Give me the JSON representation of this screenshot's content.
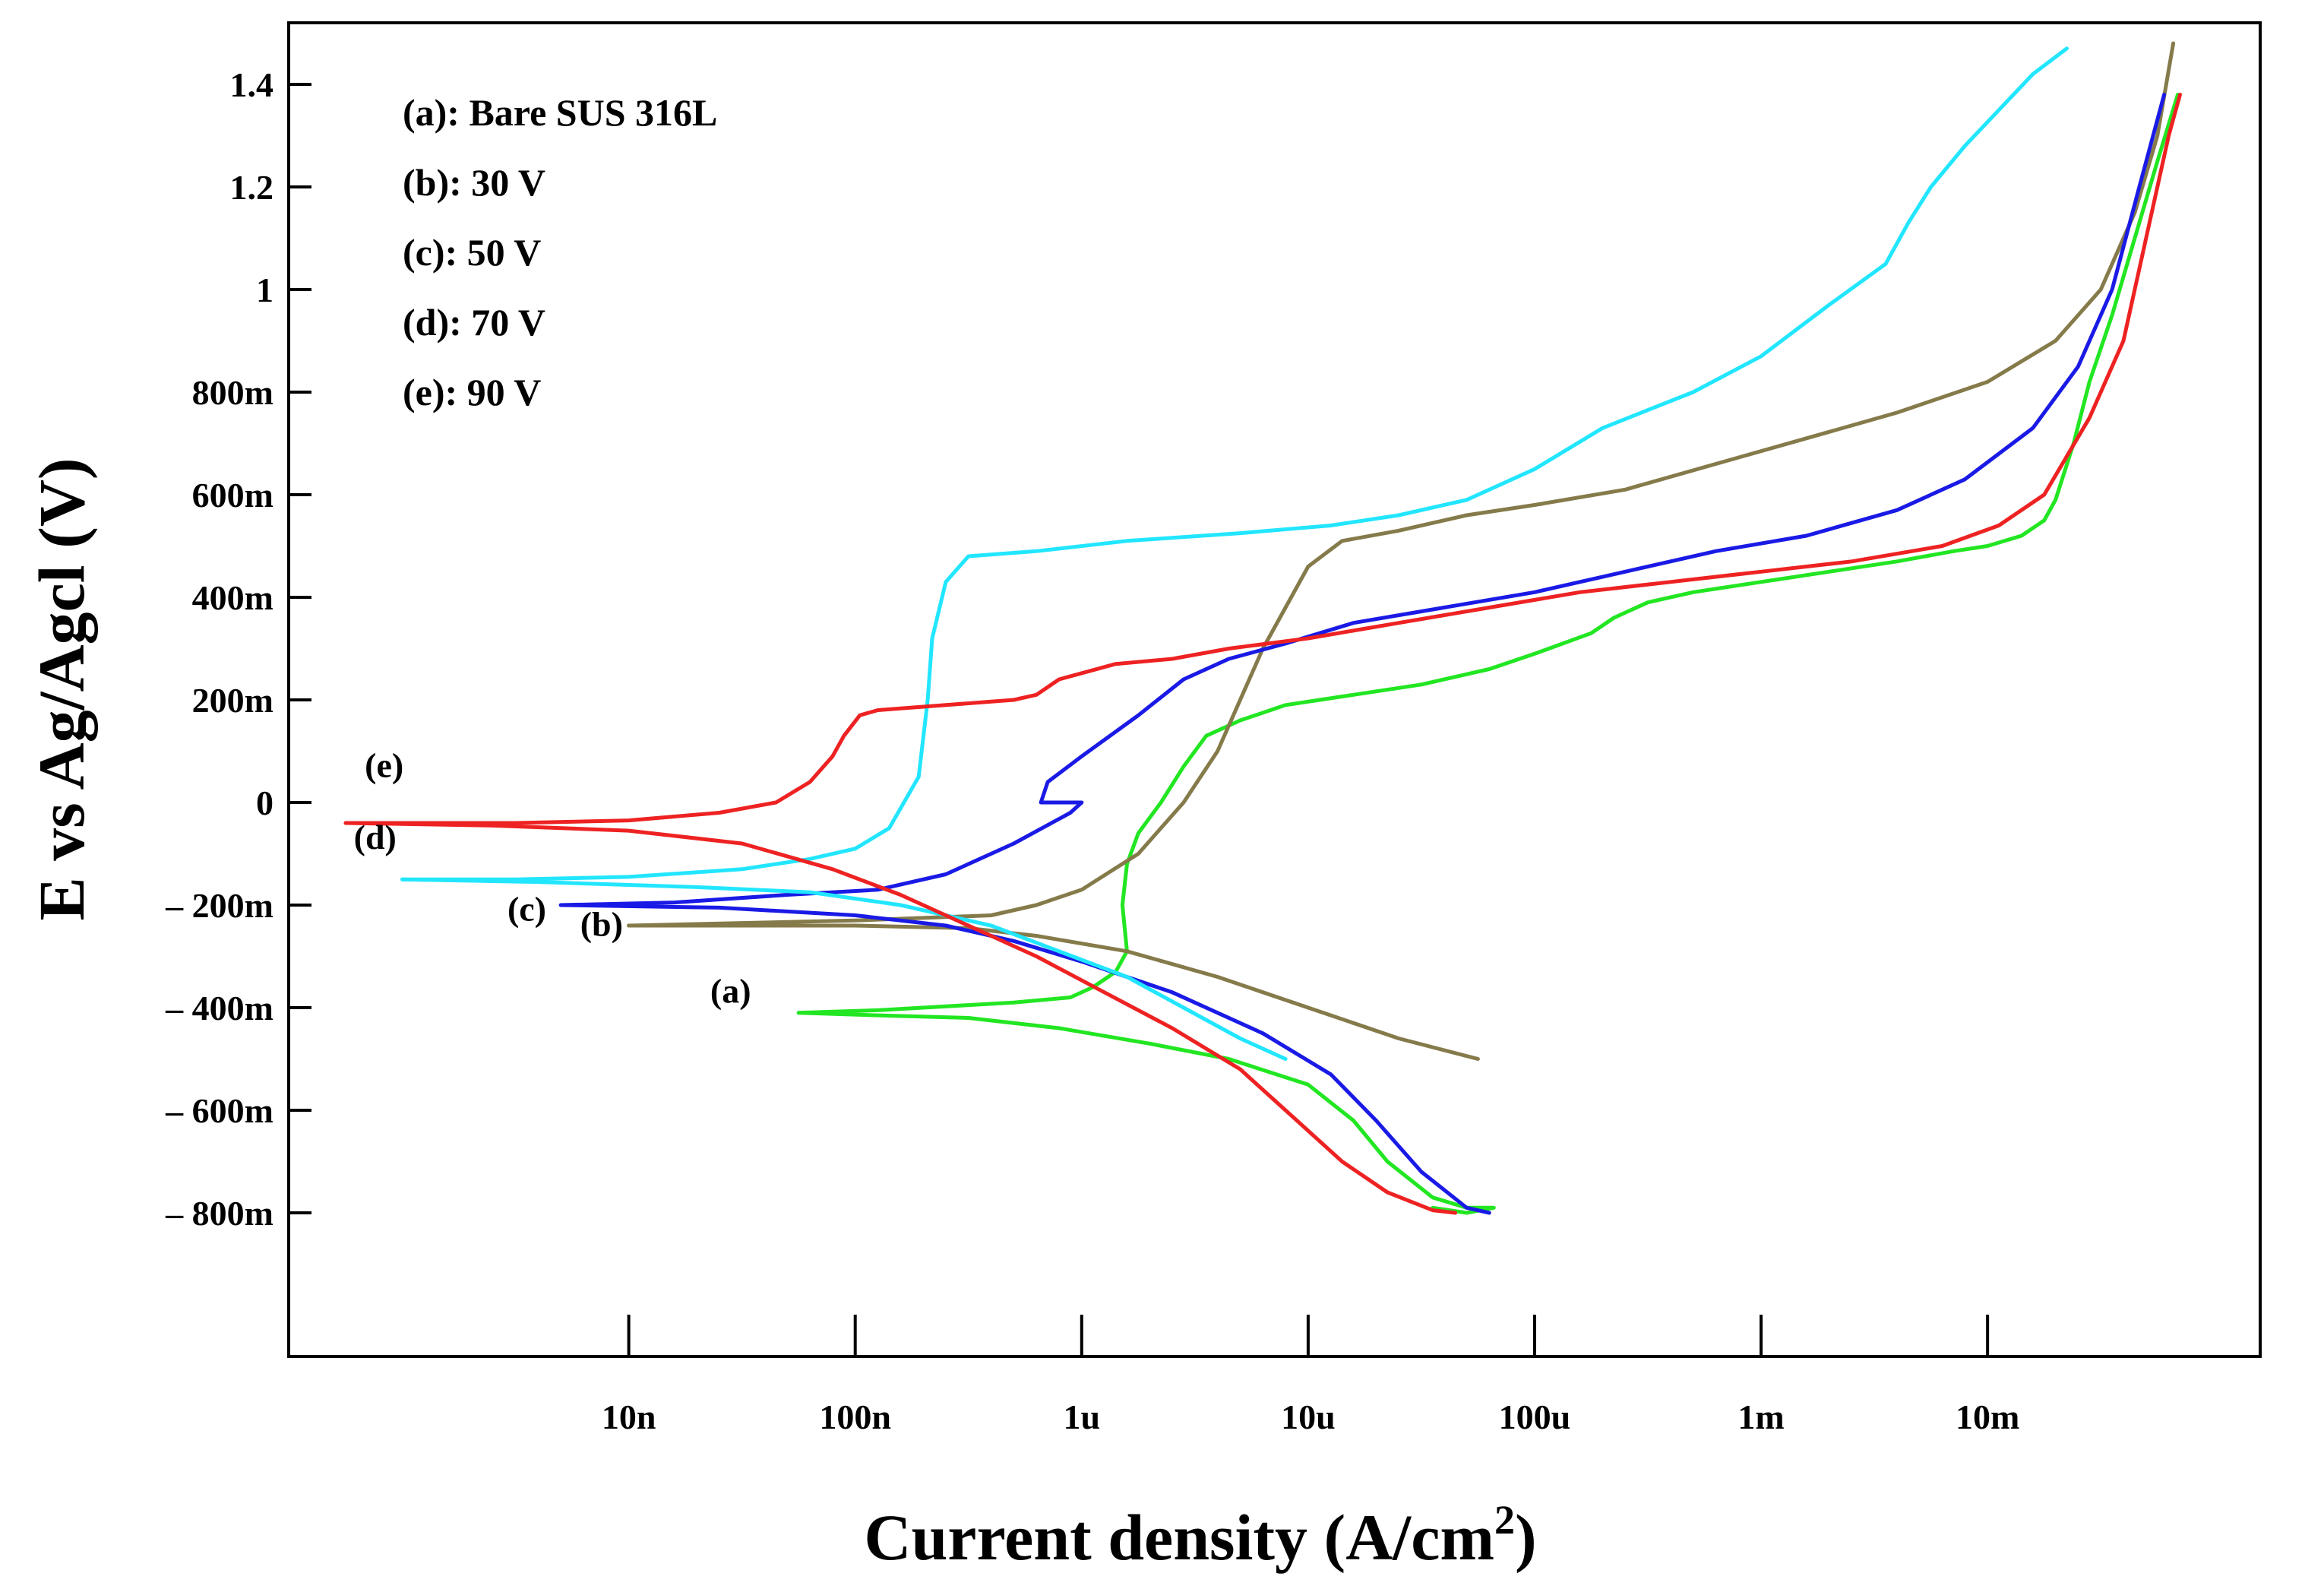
{
  "chart_data": {
    "type": "line",
    "title": "",
    "xlabel": "Current density (A/cm",
    "xlabel_superscript": "2",
    "xlabel_close": ")",
    "ylabel": "E vs Ag/Agcl (V)",
    "x_scale": "log",
    "xlim_log10": [
      -9.25,
      -0.88
    ],
    "ylim": [
      -1.08,
      1.52
    ],
    "x_ticks": [
      {
        "log10": -8,
        "label": "10n"
      },
      {
        "log10": -7,
        "label": "100n"
      },
      {
        "log10": -6,
        "label": "1u"
      },
      {
        "log10": -5,
        "label": "10u"
      },
      {
        "log10": -4,
        "label": "100u"
      },
      {
        "log10": -3,
        "label": "1m"
      },
      {
        "log10": -2,
        "label": "10m"
      }
    ],
    "y_ticks": [
      {
        "value": 1.4,
        "label": "1.4"
      },
      {
        "value": 1.2,
        "label": "1.2"
      },
      {
        "value": 1.0,
        "label": "1"
      },
      {
        "value": 0.8,
        "label": "800m"
      },
      {
        "value": 0.6,
        "label": "600m"
      },
      {
        "value": 0.4,
        "label": "400m"
      },
      {
        "value": 0.2,
        "label": "200m"
      },
      {
        "value": 0.0,
        "label": "0"
      },
      {
        "value": -0.2,
        "label": "– 200m"
      },
      {
        "value": -0.4,
        "label": "– 400m"
      },
      {
        "value": -0.6,
        "label": "– 600m"
      },
      {
        "value": -0.8,
        "label": "– 800m"
      }
    ],
    "legend": {
      "placement": "top-left",
      "entries": [
        "(a): Bare SUS 316L",
        "(b): 30 V",
        "(c): 50 V",
        "(d): 70 V",
        "(e): 90 V"
      ]
    },
    "series": [
      {
        "name": "(a)",
        "color": "#22e622",
        "label_point": {
          "log10": -7.55,
          "E": -0.39
        },
        "points": [
          [
            -7.25,
            -0.41
          ],
          [
            -6.9,
            -0.405
          ],
          [
            -6.7,
            -0.4
          ],
          [
            -6.5,
            -0.395
          ],
          [
            -6.3,
            -0.39
          ],
          [
            -6.05,
            -0.38
          ],
          [
            -5.95,
            -0.36
          ],
          [
            -5.85,
            -0.33
          ],
          [
            -5.8,
            -0.29
          ],
          [
            -5.82,
            -0.2
          ],
          [
            -5.8,
            -0.12
          ],
          [
            -5.75,
            -0.06
          ],
          [
            -5.65,
            0.0
          ],
          [
            -5.55,
            0.07
          ],
          [
            -5.45,
            0.13
          ],
          [
            -5.3,
            0.16
          ],
          [
            -5.1,
            0.19
          ],
          [
            -4.8,
            0.21
          ],
          [
            -4.5,
            0.23
          ],
          [
            -4.2,
            0.26
          ],
          [
            -4.0,
            0.29
          ],
          [
            -3.75,
            0.33
          ],
          [
            -3.65,
            0.36
          ],
          [
            -3.5,
            0.39
          ],
          [
            -3.3,
            0.41
          ],
          [
            -3.0,
            0.43
          ],
          [
            -2.7,
            0.45
          ],
          [
            -2.4,
            0.47
          ],
          [
            -2.15,
            0.49
          ],
          [
            -2.0,
            0.5
          ],
          [
            -1.85,
            0.52
          ],
          [
            -1.75,
            0.55
          ],
          [
            -1.7,
            0.59
          ],
          [
            -1.62,
            0.7
          ],
          [
            -1.55,
            0.82
          ],
          [
            -1.45,
            0.95
          ],
          [
            -1.35,
            1.1
          ],
          [
            -1.25,
            1.25
          ],
          [
            -1.16,
            1.38
          ]
        ],
        "points_cathodic": [
          [
            -7.25,
            -0.41
          ],
          [
            -6.9,
            -0.415
          ],
          [
            -6.5,
            -0.42
          ],
          [
            -6.1,
            -0.44
          ],
          [
            -5.7,
            -0.47
          ],
          [
            -5.35,
            -0.5
          ],
          [
            -5.0,
            -0.55
          ],
          [
            -4.8,
            -0.62
          ],
          [
            -4.65,
            -0.7
          ],
          [
            -4.45,
            -0.77
          ],
          [
            -4.3,
            -0.79
          ],
          [
            -4.18,
            -0.79
          ],
          [
            -4.3,
            -0.8
          ],
          [
            -4.45,
            -0.79
          ]
        ]
      },
      {
        "name": "(b)",
        "color": "#857a4a",
        "label_point": {
          "log10": -8.12,
          "E": -0.26
        },
        "points": [
          [
            -8.0,
            -0.24
          ],
          [
            -7.5,
            -0.235
          ],
          [
            -7.0,
            -0.23
          ],
          [
            -6.7,
            -0.225
          ],
          [
            -6.4,
            -0.22
          ],
          [
            -6.2,
            -0.2
          ],
          [
            -6.0,
            -0.17
          ],
          [
            -5.75,
            -0.1
          ],
          [
            -5.55,
            0.0
          ],
          [
            -5.4,
            0.1
          ],
          [
            -5.3,
            0.2
          ],
          [
            -5.2,
            0.3
          ],
          [
            -5.1,
            0.38
          ],
          [
            -5.0,
            0.46
          ],
          [
            -4.85,
            0.51
          ],
          [
            -4.6,
            0.53
          ],
          [
            -4.3,
            0.56
          ],
          [
            -4.0,
            0.58
          ],
          [
            -3.6,
            0.61
          ],
          [
            -3.2,
            0.66
          ],
          [
            -2.8,
            0.71
          ],
          [
            -2.4,
            0.76
          ],
          [
            -2.0,
            0.82
          ],
          [
            -1.7,
            0.9
          ],
          [
            -1.5,
            1.0
          ],
          [
            -1.35,
            1.15
          ],
          [
            -1.25,
            1.3
          ],
          [
            -1.18,
            1.48
          ]
        ],
        "points_cathodic": [
          [
            -8.0,
            -0.24
          ],
          [
            -7.5,
            -0.24
          ],
          [
            -7.0,
            -0.24
          ],
          [
            -6.5,
            -0.245
          ],
          [
            -6.2,
            -0.26
          ],
          [
            -5.8,
            -0.29
          ],
          [
            -5.4,
            -0.34
          ],
          [
            -5.0,
            -0.4
          ],
          [
            -4.6,
            -0.46
          ],
          [
            -4.25,
            -0.5
          ]
        ]
      },
      {
        "name": "(c)",
        "color": "#1a1ae6",
        "label_point": {
          "log10": -8.45,
          "E": -0.23
        },
        "points": [
          [
            -8.3,
            -0.2
          ],
          [
            -7.8,
            -0.195
          ],
          [
            -7.3,
            -0.18
          ],
          [
            -6.9,
            -0.17
          ],
          [
            -6.6,
            -0.14
          ],
          [
            -6.3,
            -0.08
          ],
          [
            -6.05,
            -0.02
          ],
          [
            -6.0,
            0.0
          ],
          [
            -6.18,
            0.0
          ],
          [
            -6.15,
            0.04
          ],
          [
            -6.0,
            0.09
          ],
          [
            -5.75,
            0.17
          ],
          [
            -5.55,
            0.24
          ],
          [
            -5.35,
            0.28
          ],
          [
            -5.1,
            0.31
          ],
          [
            -4.8,
            0.35
          ],
          [
            -4.4,
            0.38
          ],
          [
            -4.0,
            0.41
          ],
          [
            -3.6,
            0.45
          ],
          [
            -3.2,
            0.49
          ],
          [
            -2.8,
            0.52
          ],
          [
            -2.4,
            0.57
          ],
          [
            -2.1,
            0.63
          ],
          [
            -1.8,
            0.73
          ],
          [
            -1.6,
            0.85
          ],
          [
            -1.45,
            1.0
          ],
          [
            -1.33,
            1.2
          ],
          [
            -1.22,
            1.38
          ]
        ],
        "points_cathodic": [
          [
            -8.3,
            -0.2
          ],
          [
            -7.6,
            -0.205
          ],
          [
            -7.0,
            -0.22
          ],
          [
            -6.6,
            -0.24
          ],
          [
            -6.3,
            -0.27
          ],
          [
            -6.0,
            -0.31
          ],
          [
            -5.6,
            -0.37
          ],
          [
            -5.2,
            -0.45
          ],
          [
            -4.9,
            -0.53
          ],
          [
            -4.7,
            -0.62
          ],
          [
            -4.5,
            -0.72
          ],
          [
            -4.3,
            -0.79
          ],
          [
            -4.2,
            -0.8
          ],
          [
            -4.3,
            -0.79
          ]
        ]
      },
      {
        "name": "(d)",
        "color": "#22e6ff",
        "label_point": {
          "log10": -9.12,
          "E": -0.09
        },
        "points": [
          [
            -9.0,
            -0.15
          ],
          [
            -8.5,
            -0.15
          ],
          [
            -8.0,
            -0.145
          ],
          [
            -7.5,
            -0.13
          ],
          [
            -7.2,
            -0.11
          ],
          [
            -7.0,
            -0.09
          ],
          [
            -6.85,
            -0.05
          ],
          [
            -6.72,
            0.05
          ],
          [
            -6.68,
            0.2
          ],
          [
            -6.66,
            0.32
          ],
          [
            -6.6,
            0.43
          ],
          [
            -6.5,
            0.48
          ],
          [
            -6.2,
            0.49
          ],
          [
            -5.8,
            0.51
          ],
          [
            -5.3,
            0.525
          ],
          [
            -4.9,
            0.54
          ],
          [
            -4.6,
            0.56
          ],
          [
            -4.3,
            0.59
          ],
          [
            -4.0,
            0.65
          ],
          [
            -3.7,
            0.73
          ],
          [
            -3.3,
            0.8
          ],
          [
            -3.0,
            0.87
          ],
          [
            -2.7,
            0.97
          ],
          [
            -2.45,
            1.05
          ],
          [
            -2.35,
            1.13
          ],
          [
            -2.25,
            1.2
          ],
          [
            -2.1,
            1.28
          ],
          [
            -1.95,
            1.35
          ],
          [
            -1.8,
            1.42
          ],
          [
            -1.65,
            1.47
          ]
        ],
        "points_cathodic": [
          [
            -9.0,
            -0.15
          ],
          [
            -8.4,
            -0.155
          ],
          [
            -7.7,
            -0.165
          ],
          [
            -7.2,
            -0.175
          ],
          [
            -6.8,
            -0.2
          ],
          [
            -6.4,
            -0.24
          ],
          [
            -6.1,
            -0.29
          ],
          [
            -5.8,
            -0.34
          ],
          [
            -5.55,
            -0.4
          ],
          [
            -5.3,
            -0.46
          ],
          [
            -5.1,
            -0.5
          ]
        ]
      },
      {
        "name": "(e)",
        "color": "#ee2222",
        "label_point": {
          "log10": -9.08,
          "E": 0.05
        },
        "points": [
          [
            -9.25,
            -0.04
          ],
          [
            -8.5,
            -0.04
          ],
          [
            -8.0,
            -0.035
          ],
          [
            -7.6,
            -0.02
          ],
          [
            -7.35,
            0.0
          ],
          [
            -7.2,
            0.04
          ],
          [
            -7.1,
            0.09
          ],
          [
            -7.05,
            0.13
          ],
          [
            -6.98,
            0.17
          ],
          [
            -6.9,
            0.18
          ],
          [
            -6.6,
            0.19
          ],
          [
            -6.3,
            0.2
          ],
          [
            -6.2,
            0.21
          ],
          [
            -6.1,
            0.24
          ],
          [
            -5.85,
            0.27
          ],
          [
            -5.6,
            0.28
          ],
          [
            -5.35,
            0.3
          ],
          [
            -5.0,
            0.32
          ],
          [
            -4.6,
            0.35
          ],
          [
            -4.2,
            0.38
          ],
          [
            -3.8,
            0.41
          ],
          [
            -3.4,
            0.43
          ],
          [
            -3.0,
            0.45
          ],
          [
            -2.6,
            0.47
          ],
          [
            -2.2,
            0.5
          ],
          [
            -1.95,
            0.54
          ],
          [
            -1.75,
            0.6
          ],
          [
            -1.55,
            0.75
          ],
          [
            -1.4,
            0.9
          ],
          [
            -1.3,
            1.1
          ],
          [
            -1.2,
            1.3
          ],
          [
            -1.15,
            1.38
          ]
        ],
        "points_cathodic": [
          [
            -9.25,
            -0.04
          ],
          [
            -8.6,
            -0.045
          ],
          [
            -8.0,
            -0.055
          ],
          [
            -7.5,
            -0.08
          ],
          [
            -7.1,
            -0.13
          ],
          [
            -6.8,
            -0.18
          ],
          [
            -6.5,
            -0.24
          ],
          [
            -6.2,
            -0.3
          ],
          [
            -5.9,
            -0.37
          ],
          [
            -5.6,
            -0.44
          ],
          [
            -5.3,
            -0.52
          ],
          [
            -5.05,
            -0.62
          ],
          [
            -4.85,
            -0.7
          ],
          [
            -4.65,
            -0.76
          ],
          [
            -4.45,
            -0.795
          ],
          [
            -4.35,
            -0.8
          ]
        ]
      }
    ]
  }
}
